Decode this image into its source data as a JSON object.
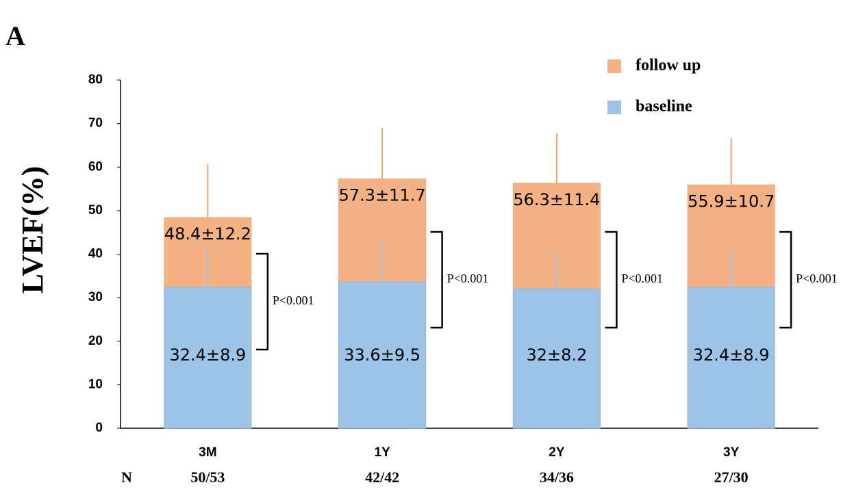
{
  "panel_label": "A",
  "chart_data": {
    "type": "overlap-bar",
    "y_label": "LVEF(%)",
    "categories": [
      "3M",
      "1Y",
      "2Y",
      "3Y"
    ],
    "n_label": "N",
    "n_values": [
      "50/53",
      "42/42",
      "34/36",
      "27/30"
    ],
    "p_values": [
      "P<0.001",
      "P<0.001",
      "P<0.001",
      "P<0.001"
    ],
    "series": [
      {
        "name": "follow up",
        "color": "#f4b183",
        "values": [
          48.4,
          57.3,
          56.3,
          55.9
        ],
        "errors": [
          12.2,
          11.7,
          11.4,
          10.7
        ],
        "value_labels": [
          "48.4±12.2",
          "57.3±11.7",
          "56.3±11.4",
          "55.9±10.7"
        ]
      },
      {
        "name": "baseline",
        "color": "#9dc3e6",
        "values": [
          32.4,
          33.6,
          32,
          32.4
        ],
        "errors": [
          8.9,
          9.5,
          8.2,
          8.9
        ],
        "value_labels": [
          "32.4±8.9",
          "33.6±9.5",
          "32±8.2",
          "32.4±8.9"
        ]
      }
    ],
    "ylim": [
      0,
      80
    ],
    "yticks": [
      0,
      10,
      20,
      30,
      40,
      50,
      60,
      70,
      80
    ],
    "grid": false
  }
}
